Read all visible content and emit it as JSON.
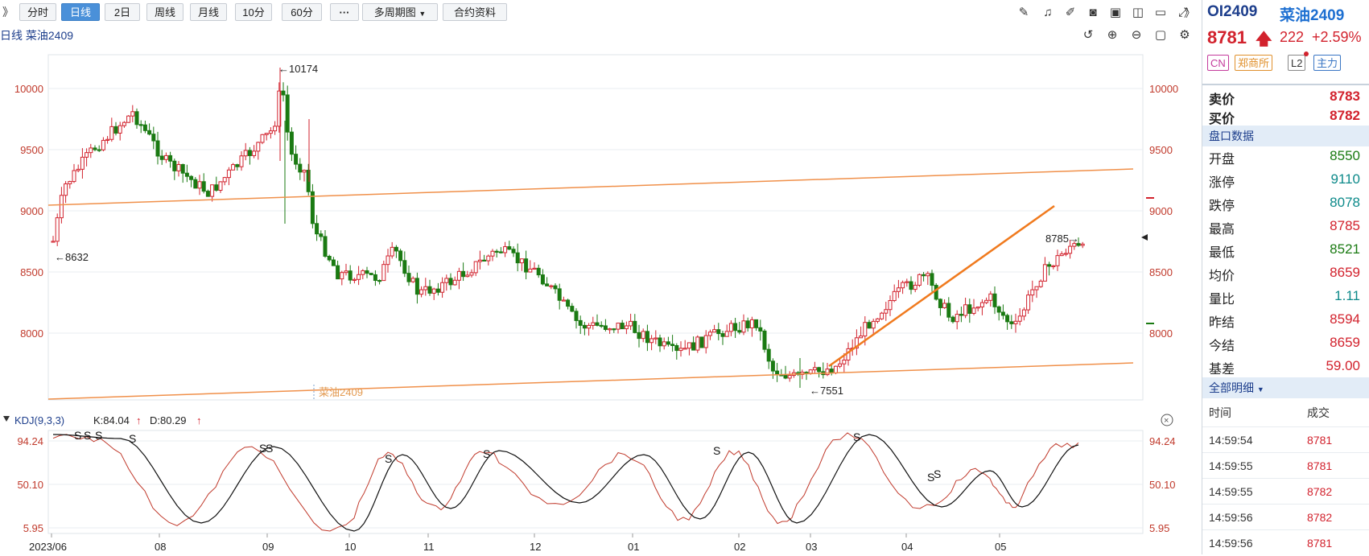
{
  "toolbar": {
    "collapse": "》",
    "tabs": [
      "分时",
      "日线",
      "2日",
      "周线",
      "月线",
      "10分",
      "60分"
    ],
    "active_tab": "日线",
    "more": "···",
    "multi_period": "多周期图",
    "contract_info": "合约资料"
  },
  "chart_header": {
    "period": "日线",
    "name": "菜油2409"
  },
  "main_chart": {
    "y_ticks": [
      "10000",
      "9500",
      "9000",
      "8500",
      "8000"
    ],
    "x_ticks": [
      "2023/06",
      "08",
      "09",
      "10",
      "11",
      "12",
      "01",
      "02",
      "03",
      "04",
      "05"
    ],
    "high_label": "←10174",
    "low_label_a": "←8632",
    "low_label_b": "←7551",
    "recent_high_label": "8785→",
    "watermark": "菜油2409",
    "colors": {
      "up": "#d2222d",
      "down": "#1a7a12",
      "trendline": "#f0904a"
    }
  },
  "kdj": {
    "title": "KDJ(9,3,3)",
    "k_label": "K:84.04",
    "d_label": "D:80.29",
    "y_ticks": [
      "94.24",
      "50.10",
      "5.95"
    ],
    "signal": "S"
  },
  "right_panel": {
    "code": "OI2409",
    "name": "菜油2409",
    "last": "8781",
    "change": "222",
    "change_pct": "+2.59%",
    "tags": [
      "CN",
      "郑商所",
      "L2",
      "主力"
    ],
    "ask_label": "卖价",
    "ask": "8783",
    "bid_label": "买价",
    "bid": "8782",
    "quote_head": "盘口数据",
    "quotes": [
      {
        "label": "开盘",
        "value": "8550",
        "color": "#1a7a12"
      },
      {
        "label": "涨停",
        "value": "9110",
        "color": "#0d8a8a"
      },
      {
        "label": "跌停",
        "value": "8078",
        "color": "#0d8a8a"
      },
      {
        "label": "最高",
        "value": "8785",
        "color": "#d2222d"
      },
      {
        "label": "最低",
        "value": "8521",
        "color": "#1a7a12"
      },
      {
        "label": "均价",
        "value": "8659",
        "color": "#d2222d"
      },
      {
        "label": "量比",
        "value": "1.11",
        "color": "#0d8a8a"
      },
      {
        "label": "昨结",
        "value": "8594",
        "color": "#d2222d"
      },
      {
        "label": "今结",
        "value": "8659",
        "color": "#d2222d"
      },
      {
        "label": "基差",
        "value": "59.00",
        "color": "#d2222d"
      }
    ],
    "detail_head": "全部明细",
    "detail_cols": [
      "时间",
      "成交"
    ],
    "ticks": [
      {
        "time": "14:59:54",
        "price": "8781"
      },
      {
        "time": "14:59:55",
        "price": "8781"
      },
      {
        "time": "14:59:55",
        "price": "8782"
      },
      {
        "time": "14:59:56",
        "price": "8782"
      },
      {
        "time": "14:59:56",
        "price": "8781"
      }
    ]
  }
}
